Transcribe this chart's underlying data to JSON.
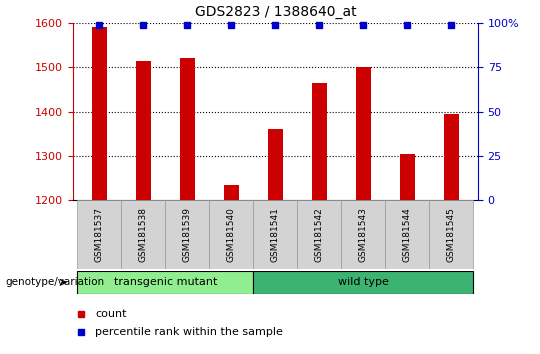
{
  "title": "GDS2823 / 1388640_at",
  "samples": [
    "GSM181537",
    "GSM181538",
    "GSM181539",
    "GSM181540",
    "GSM181541",
    "GSM181542",
    "GSM181543",
    "GSM181544",
    "GSM181545"
  ],
  "counts": [
    1590,
    1515,
    1520,
    1235,
    1360,
    1465,
    1500,
    1305,
    1395
  ],
  "percentile_ranks": [
    99,
    99,
    99,
    99,
    99,
    99,
    99,
    99,
    99
  ],
  "ylim_left": [
    1200,
    1600
  ],
  "ylim_right": [
    0,
    100
  ],
  "yticks_left": [
    1200,
    1300,
    1400,
    1500,
    1600
  ],
  "yticks_right": [
    0,
    25,
    50,
    75,
    100
  ],
  "ytick_right_labels": [
    "0",
    "25",
    "50",
    "75",
    "100%"
  ],
  "bar_color": "#CC0000",
  "dot_color": "#0000CC",
  "label_bg_color": "#d3d3d3",
  "tm_color": "#90EE90",
  "wt_color": "#3CB371",
  "right_axis_color": "#0000CC",
  "left_axis_color": "#CC0000",
  "bar_width": 0.35,
  "tm_indices": [
    0,
    1,
    2,
    3
  ],
  "wt_indices": [
    4,
    5,
    6,
    7,
    8
  ]
}
